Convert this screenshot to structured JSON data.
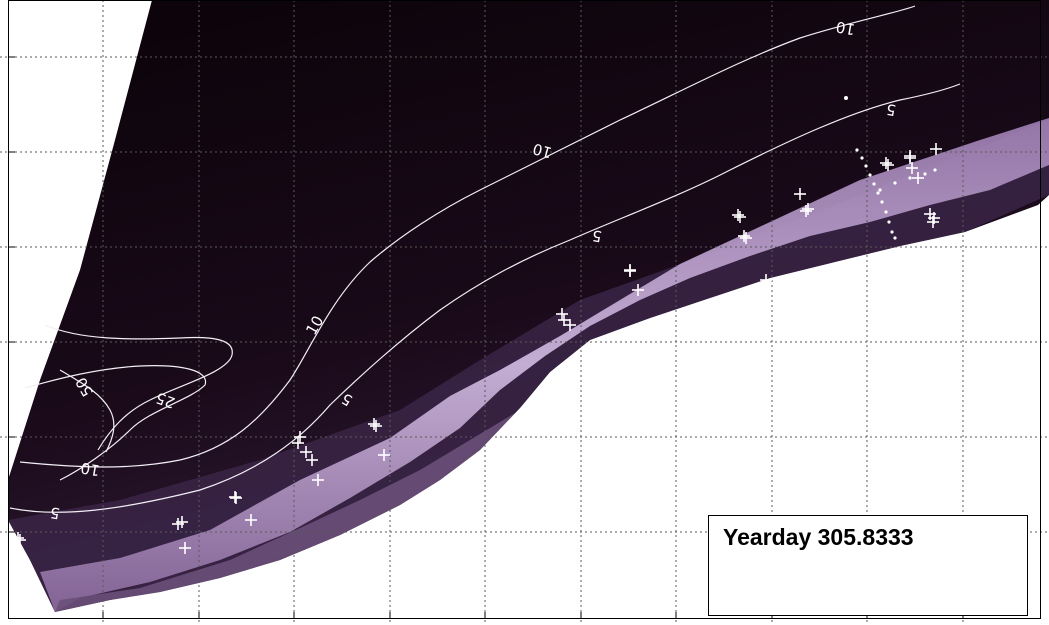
{
  "image": {
    "title": "",
    "grid": true,
    "colors": {
      "background": "#ffffff",
      "water": "#1a0a1a",
      "surf_zone": "#c7a9d9",
      "land_band": "#5b4468",
      "contour": "#f2eef5",
      "grid": "#5a5a5a",
      "markers": "#ffffff"
    }
  },
  "contour_labels": [
    "10",
    "10",
    "10",
    "10",
    "5",
    "5",
    "5",
    "5",
    "25",
    "50"
  ],
  "legend": {
    "label": "Yearday",
    "value": "305.8333"
  },
  "markers": {
    "symbol": "+",
    "count": 40
  }
}
